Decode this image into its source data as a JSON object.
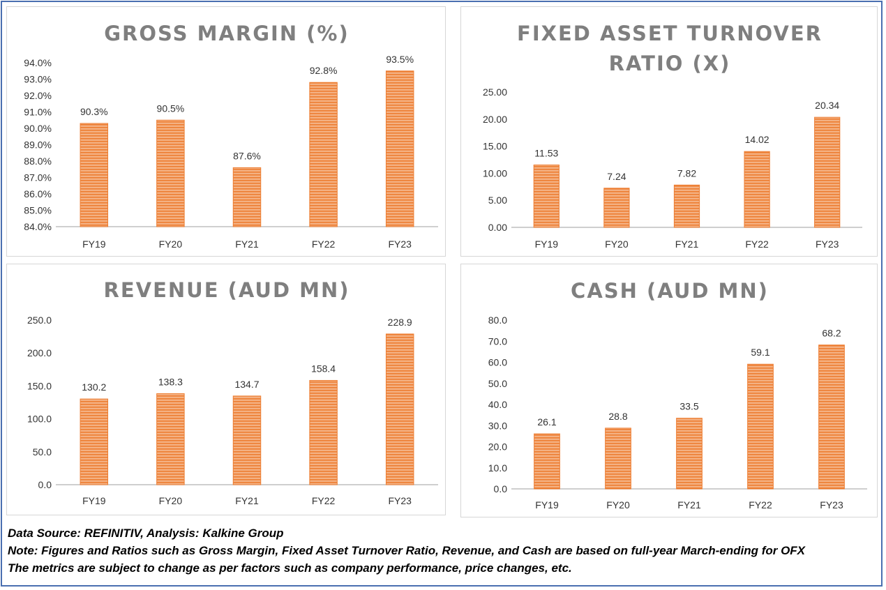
{
  "colors": {
    "bar": "#f4b183",
    "bar_stripe": "#ed7d31",
    "title": "#7f7f7f",
    "axis": "#bfbfbf",
    "border": "#4a6fb0"
  },
  "chart_data": [
    {
      "type": "bar",
      "title_lines": [
        "GROSS MARGIN (%)"
      ],
      "categories": [
        "FY19",
        "FY20",
        "FY21",
        "FY22",
        "FY23"
      ],
      "values": [
        90.3,
        90.5,
        87.6,
        92.8,
        93.5
      ],
      "labels": [
        "90.3%",
        "90.5%",
        "87.6%",
        "92.8%",
        "93.5%"
      ],
      "yticks": [
        "84.0%",
        "85.0%",
        "86.0%",
        "87.0%",
        "88.0%",
        "89.0%",
        "90.0%",
        "91.0%",
        "92.0%",
        "93.0%",
        "94.0%"
      ],
      "ylim": [
        84,
        94
      ],
      "xlabel": "",
      "ylabel": "",
      "grid": false
    },
    {
      "type": "bar",
      "title_lines": [
        "FIXED ASSET TURNOVER",
        "RATIO (X)"
      ],
      "categories": [
        "FY19",
        "FY20",
        "FY21",
        "FY22",
        "FY23"
      ],
      "values": [
        11.53,
        7.24,
        7.82,
        14.02,
        20.34
      ],
      "labels": [
        "11.53",
        "7.24",
        "7.82",
        "14.02",
        "20.34"
      ],
      "yticks": [
        "0.00",
        "5.00",
        "10.00",
        "15.00",
        "20.00",
        "25.00"
      ],
      "ylim": [
        0,
        25
      ],
      "xlabel": "",
      "ylabel": "",
      "grid": false
    },
    {
      "type": "bar",
      "title_lines": [
        "REVENUE (AUD MN)"
      ],
      "categories": [
        "FY19",
        "FY20",
        "FY21",
        "FY22",
        "FY23"
      ],
      "values": [
        130.2,
        138.3,
        134.7,
        158.4,
        228.9
      ],
      "labels": [
        "130.2",
        "138.3",
        "134.7",
        "158.4",
        "228.9"
      ],
      "yticks": [
        "0.0",
        "50.0",
        "100.0",
        "150.0",
        "200.0",
        "250.0"
      ],
      "ylim": [
        0,
        250
      ],
      "xlabel": "",
      "ylabel": "",
      "grid": false
    },
    {
      "type": "bar",
      "title_lines": [
        "CASH (AUD MN)"
      ],
      "categories": [
        "FY19",
        "FY20",
        "FY21",
        "FY22",
        "FY23"
      ],
      "values": [
        26.1,
        28.8,
        33.5,
        59.1,
        68.2
      ],
      "labels": [
        "26.1",
        "28.8",
        "33.5",
        "59.1",
        "68.2"
      ],
      "yticks": [
        "0.0",
        "10.0",
        "20.0",
        "30.0",
        "40.0",
        "50.0",
        "60.0",
        "70.0",
        "80.0"
      ],
      "ylim": [
        0,
        80
      ],
      "xlabel": "",
      "ylabel": "",
      "grid": false
    }
  ],
  "footer": {
    "source": "Data Source: REFINITIV, Analysis: Kalkine Group",
    "note": "Note: Figures and Ratios such as Gross Margin, Fixed Asset Turnover Ratio, Revenue, and Cash are based on full-year March-ending for OFX",
    "disclaimer": "The metrics are subject to change as per factors such as company performance, price changes, etc."
  }
}
